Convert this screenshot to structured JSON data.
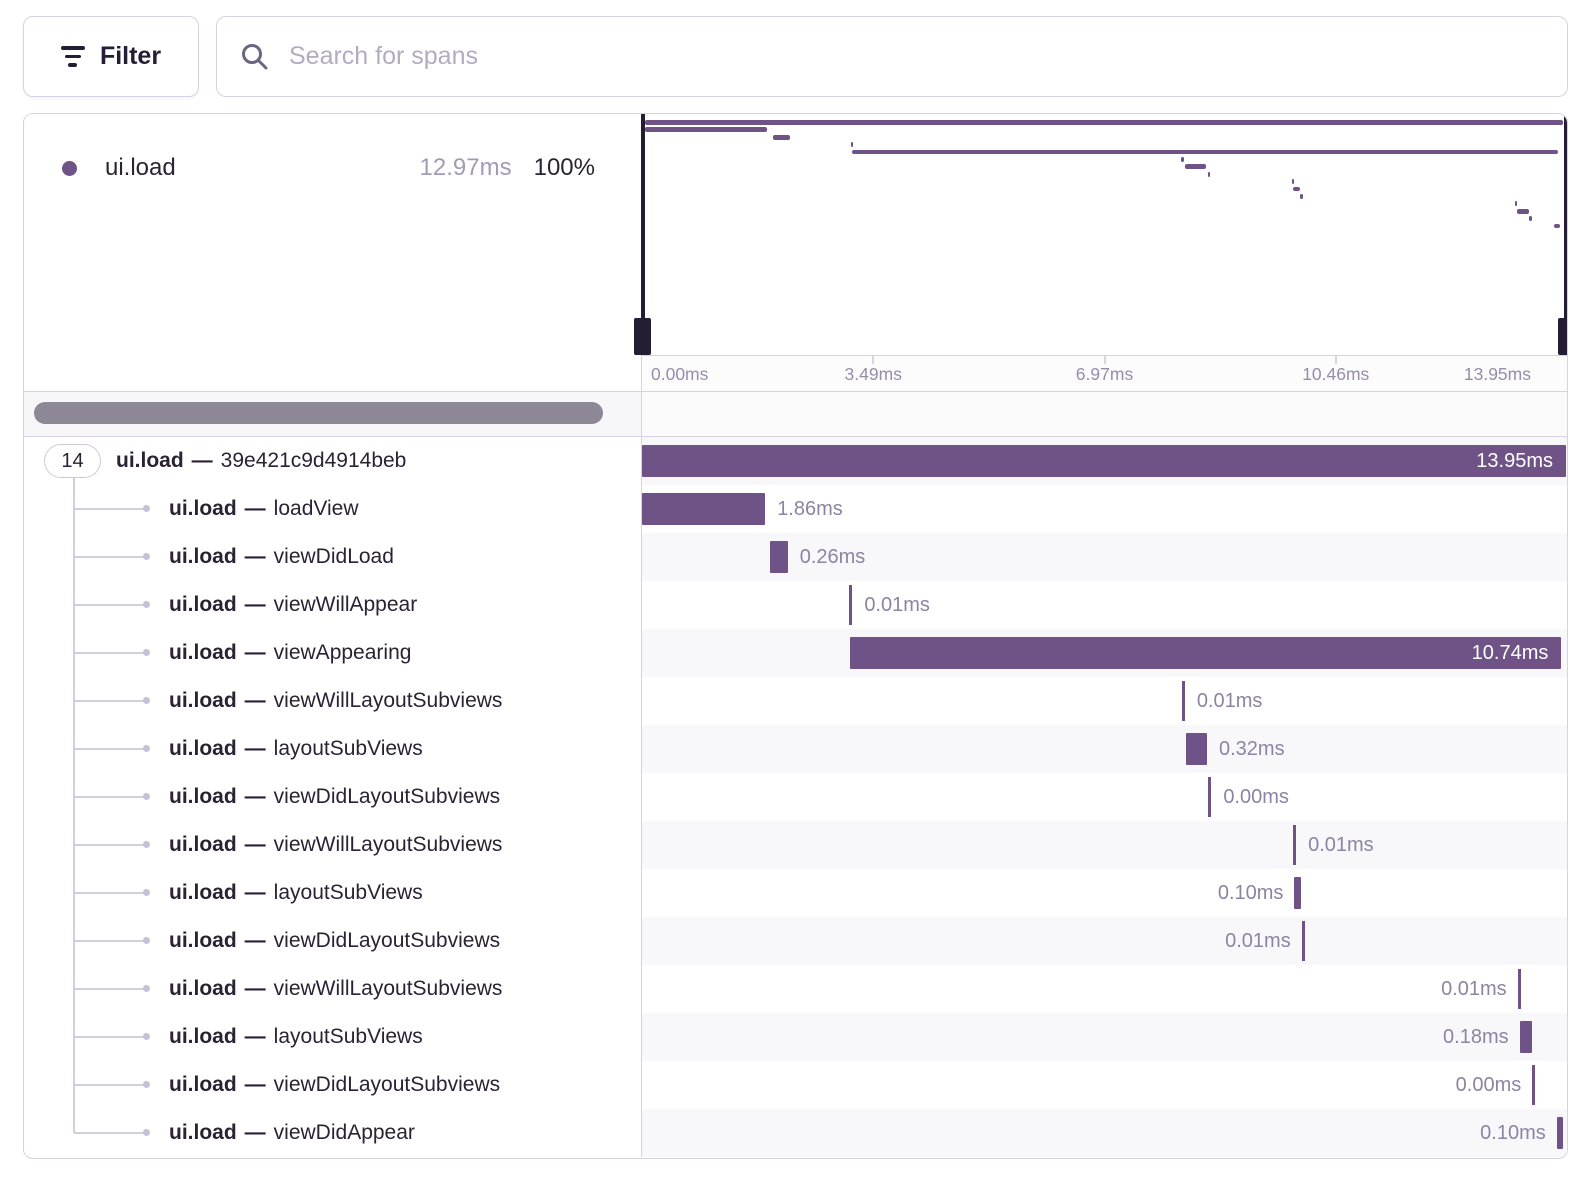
{
  "toolbar": {
    "filter_label": "Filter",
    "search_placeholder": "Search for spans"
  },
  "legend": {
    "op": "ui.load",
    "duration": "12.97ms",
    "percent": "100%"
  },
  "axis": {
    "labels": [
      "0.00ms",
      "3.49ms",
      "6.97ms",
      "10.46ms",
      "13.95ms"
    ]
  },
  "trace": {
    "total_ms": 13.95,
    "root_badge_count": "14",
    "separator": "—",
    "spans": [
      {
        "op": "ui.load",
        "name": "39e421c9d4914beb",
        "start_ms": 0.0,
        "duration_ms": 13.95,
        "label": "13.95ms",
        "label_side": "inside",
        "root": true
      },
      {
        "op": "ui.load",
        "name": "loadView",
        "start_ms": 0.0,
        "duration_ms": 1.86,
        "label": "1.86ms",
        "label_side": "right"
      },
      {
        "op": "ui.load",
        "name": "viewDidLoad",
        "start_ms": 1.94,
        "duration_ms": 0.26,
        "label": "0.26ms",
        "label_side": "right"
      },
      {
        "op": "ui.load",
        "name": "viewWillAppear",
        "start_ms": 3.13,
        "duration_ms": 0.01,
        "label": "0.01ms",
        "label_side": "right"
      },
      {
        "op": "ui.load",
        "name": "viewAppearing",
        "start_ms": 3.14,
        "duration_ms": 10.74,
        "label": "10.74ms",
        "label_side": "inside"
      },
      {
        "op": "ui.load",
        "name": "viewWillLayoutSubviews",
        "start_ms": 8.15,
        "duration_ms": 0.01,
        "label": "0.01ms",
        "label_side": "right"
      },
      {
        "op": "ui.load",
        "name": "layoutSubViews",
        "start_ms": 8.21,
        "duration_ms": 0.32,
        "label": "0.32ms",
        "label_side": "right"
      },
      {
        "op": "ui.load",
        "name": "viewDidLayoutSubviews",
        "start_ms": 8.55,
        "duration_ms": 0.0,
        "label": "0.00ms",
        "label_side": "right"
      },
      {
        "op": "ui.load",
        "name": "viewWillLayoutSubviews",
        "start_ms": 9.83,
        "duration_ms": 0.01,
        "label": "0.01ms",
        "label_side": "right"
      },
      {
        "op": "ui.load",
        "name": "layoutSubViews",
        "start_ms": 9.85,
        "duration_ms": 0.1,
        "label": "0.10ms",
        "label_side": "left"
      },
      {
        "op": "ui.load",
        "name": "viewDidLayoutSubviews",
        "start_ms": 9.96,
        "duration_ms": 0.01,
        "label": "0.01ms",
        "label_side": "left"
      },
      {
        "op": "ui.load",
        "name": "viewWillLayoutSubviews",
        "start_ms": 13.22,
        "duration_ms": 0.01,
        "label": "0.01ms",
        "label_side": "left"
      },
      {
        "op": "ui.load",
        "name": "layoutSubViews",
        "start_ms": 13.25,
        "duration_ms": 0.18,
        "label": "0.18ms",
        "label_side": "left"
      },
      {
        "op": "ui.load",
        "name": "viewDidLayoutSubviews",
        "start_ms": 13.44,
        "duration_ms": 0.0,
        "label": "0.00ms",
        "label_side": "left"
      },
      {
        "op": "ui.load",
        "name": "viewDidAppear",
        "start_ms": 13.81,
        "duration_ms": 0.1,
        "label": "0.10ms",
        "label_side": "left"
      }
    ]
  },
  "colors": {
    "span_purple": "#6f5387",
    "viewport_handle": "#251d33",
    "dark_text": "#2b2233",
    "muted_label": "#8d84a1",
    "border": "#d7d1e0",
    "alt_row": "#f8f8fb",
    "scrollbar": "#8d8796"
  }
}
